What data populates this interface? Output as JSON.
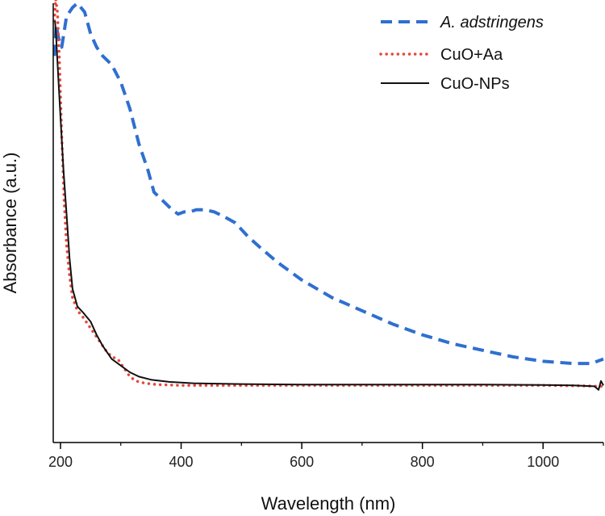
{
  "chart_data": {
    "type": "line",
    "xlabel": "Wavelength (nm)",
    "ylabel": "Absorbance (a.u.)",
    "xlim": [
      188,
      1100
    ],
    "ylim": [
      0,
      1
    ],
    "x_ticks": [
      "200",
      "400",
      "600",
      "800",
      "1000"
    ],
    "x_tick_values": [
      200,
      400,
      600,
      800,
      1000
    ],
    "y_ticks_shown": false,
    "grid": false,
    "legend_position": "top-right",
    "series": [
      {
        "name": "A. adstringens",
        "color": "#2f6fd0",
        "style": "dashed",
        "italic_name": true,
        "points": [
          [
            190,
            0.88
          ],
          [
            193,
            0.95
          ],
          [
            197,
            0.92
          ],
          [
            202,
            0.9
          ],
          [
            210,
            0.97
          ],
          [
            220,
            0.99
          ],
          [
            228,
            1.0
          ],
          [
            240,
            0.98
          ],
          [
            250,
            0.93
          ],
          [
            260,
            0.9
          ],
          [
            270,
            0.88
          ],
          [
            285,
            0.86
          ],
          [
            300,
            0.82
          ],
          [
            315,
            0.76
          ],
          [
            330,
            0.68
          ],
          [
            345,
            0.62
          ],
          [
            355,
            0.57
          ],
          [
            370,
            0.55
          ],
          [
            385,
            0.53
          ],
          [
            395,
            0.52
          ],
          [
            405,
            0.525
          ],
          [
            415,
            0.525
          ],
          [
            425,
            0.53
          ],
          [
            440,
            0.53
          ],
          [
            455,
            0.525
          ],
          [
            470,
            0.515
          ],
          [
            490,
            0.5
          ],
          [
            510,
            0.47
          ],
          [
            530,
            0.445
          ],
          [
            560,
            0.41
          ],
          [
            600,
            0.37
          ],
          [
            650,
            0.33
          ],
          [
            700,
            0.3
          ],
          [
            750,
            0.27
          ],
          [
            800,
            0.245
          ],
          [
            850,
            0.225
          ],
          [
            900,
            0.21
          ],
          [
            950,
            0.195
          ],
          [
            1000,
            0.185
          ],
          [
            1050,
            0.18
          ],
          [
            1080,
            0.18
          ],
          [
            1100,
            0.19
          ]
        ]
      },
      {
        "name": "CuO+Aa",
        "color": "#e8463c",
        "style": "dotted",
        "points": [
          [
            190,
            0.96
          ],
          [
            192,
            1.01
          ],
          [
            195,
            0.98
          ],
          [
            198,
            0.88
          ],
          [
            202,
            0.7
          ],
          [
            206,
            0.55
          ],
          [
            210,
            0.45
          ],
          [
            215,
            0.38
          ],
          [
            220,
            0.33
          ],
          [
            228,
            0.3
          ],
          [
            235,
            0.29
          ],
          [
            245,
            0.27
          ],
          [
            255,
            0.25
          ],
          [
            265,
            0.23
          ],
          [
            275,
            0.21
          ],
          [
            285,
            0.195
          ],
          [
            295,
            0.19
          ],
          [
            305,
            0.17
          ],
          [
            315,
            0.15
          ],
          [
            325,
            0.14
          ],
          [
            340,
            0.135
          ],
          [
            360,
            0.132
          ],
          [
            400,
            0.13
          ],
          [
            500,
            0.13
          ],
          [
            600,
            0.13
          ],
          [
            700,
            0.13
          ],
          [
            800,
            0.13
          ],
          [
            900,
            0.13
          ],
          [
            1000,
            0.13
          ],
          [
            1060,
            0.129
          ],
          [
            1100,
            0.128
          ]
        ]
      },
      {
        "name": "CuO-NPs",
        "color": "#111111",
        "style": "solid",
        "points": [
          [
            191,
            0.96
          ],
          [
            193,
            0.92
          ],
          [
            196,
            0.84
          ],
          [
            200,
            0.74
          ],
          [
            205,
            0.62
          ],
          [
            210,
            0.52
          ],
          [
            215,
            0.42
          ],
          [
            220,
            0.35
          ],
          [
            228,
            0.31
          ],
          [
            238,
            0.295
          ],
          [
            250,
            0.275
          ],
          [
            260,
            0.245
          ],
          [
            270,
            0.22
          ],
          [
            285,
            0.19
          ],
          [
            300,
            0.175
          ],
          [
            315,
            0.16
          ],
          [
            330,
            0.15
          ],
          [
            350,
            0.143
          ],
          [
            380,
            0.138
          ],
          [
            420,
            0.135
          ],
          [
            500,
            0.133
          ],
          [
            600,
            0.132
          ],
          [
            700,
            0.132
          ],
          [
            800,
            0.132
          ],
          [
            900,
            0.132
          ],
          [
            1000,
            0.131
          ],
          [
            1050,
            0.13
          ],
          [
            1085,
            0.128
          ],
          [
            1092,
            0.12
          ],
          [
            1096,
            0.14
          ],
          [
            1100,
            0.13
          ]
        ]
      }
    ]
  }
}
